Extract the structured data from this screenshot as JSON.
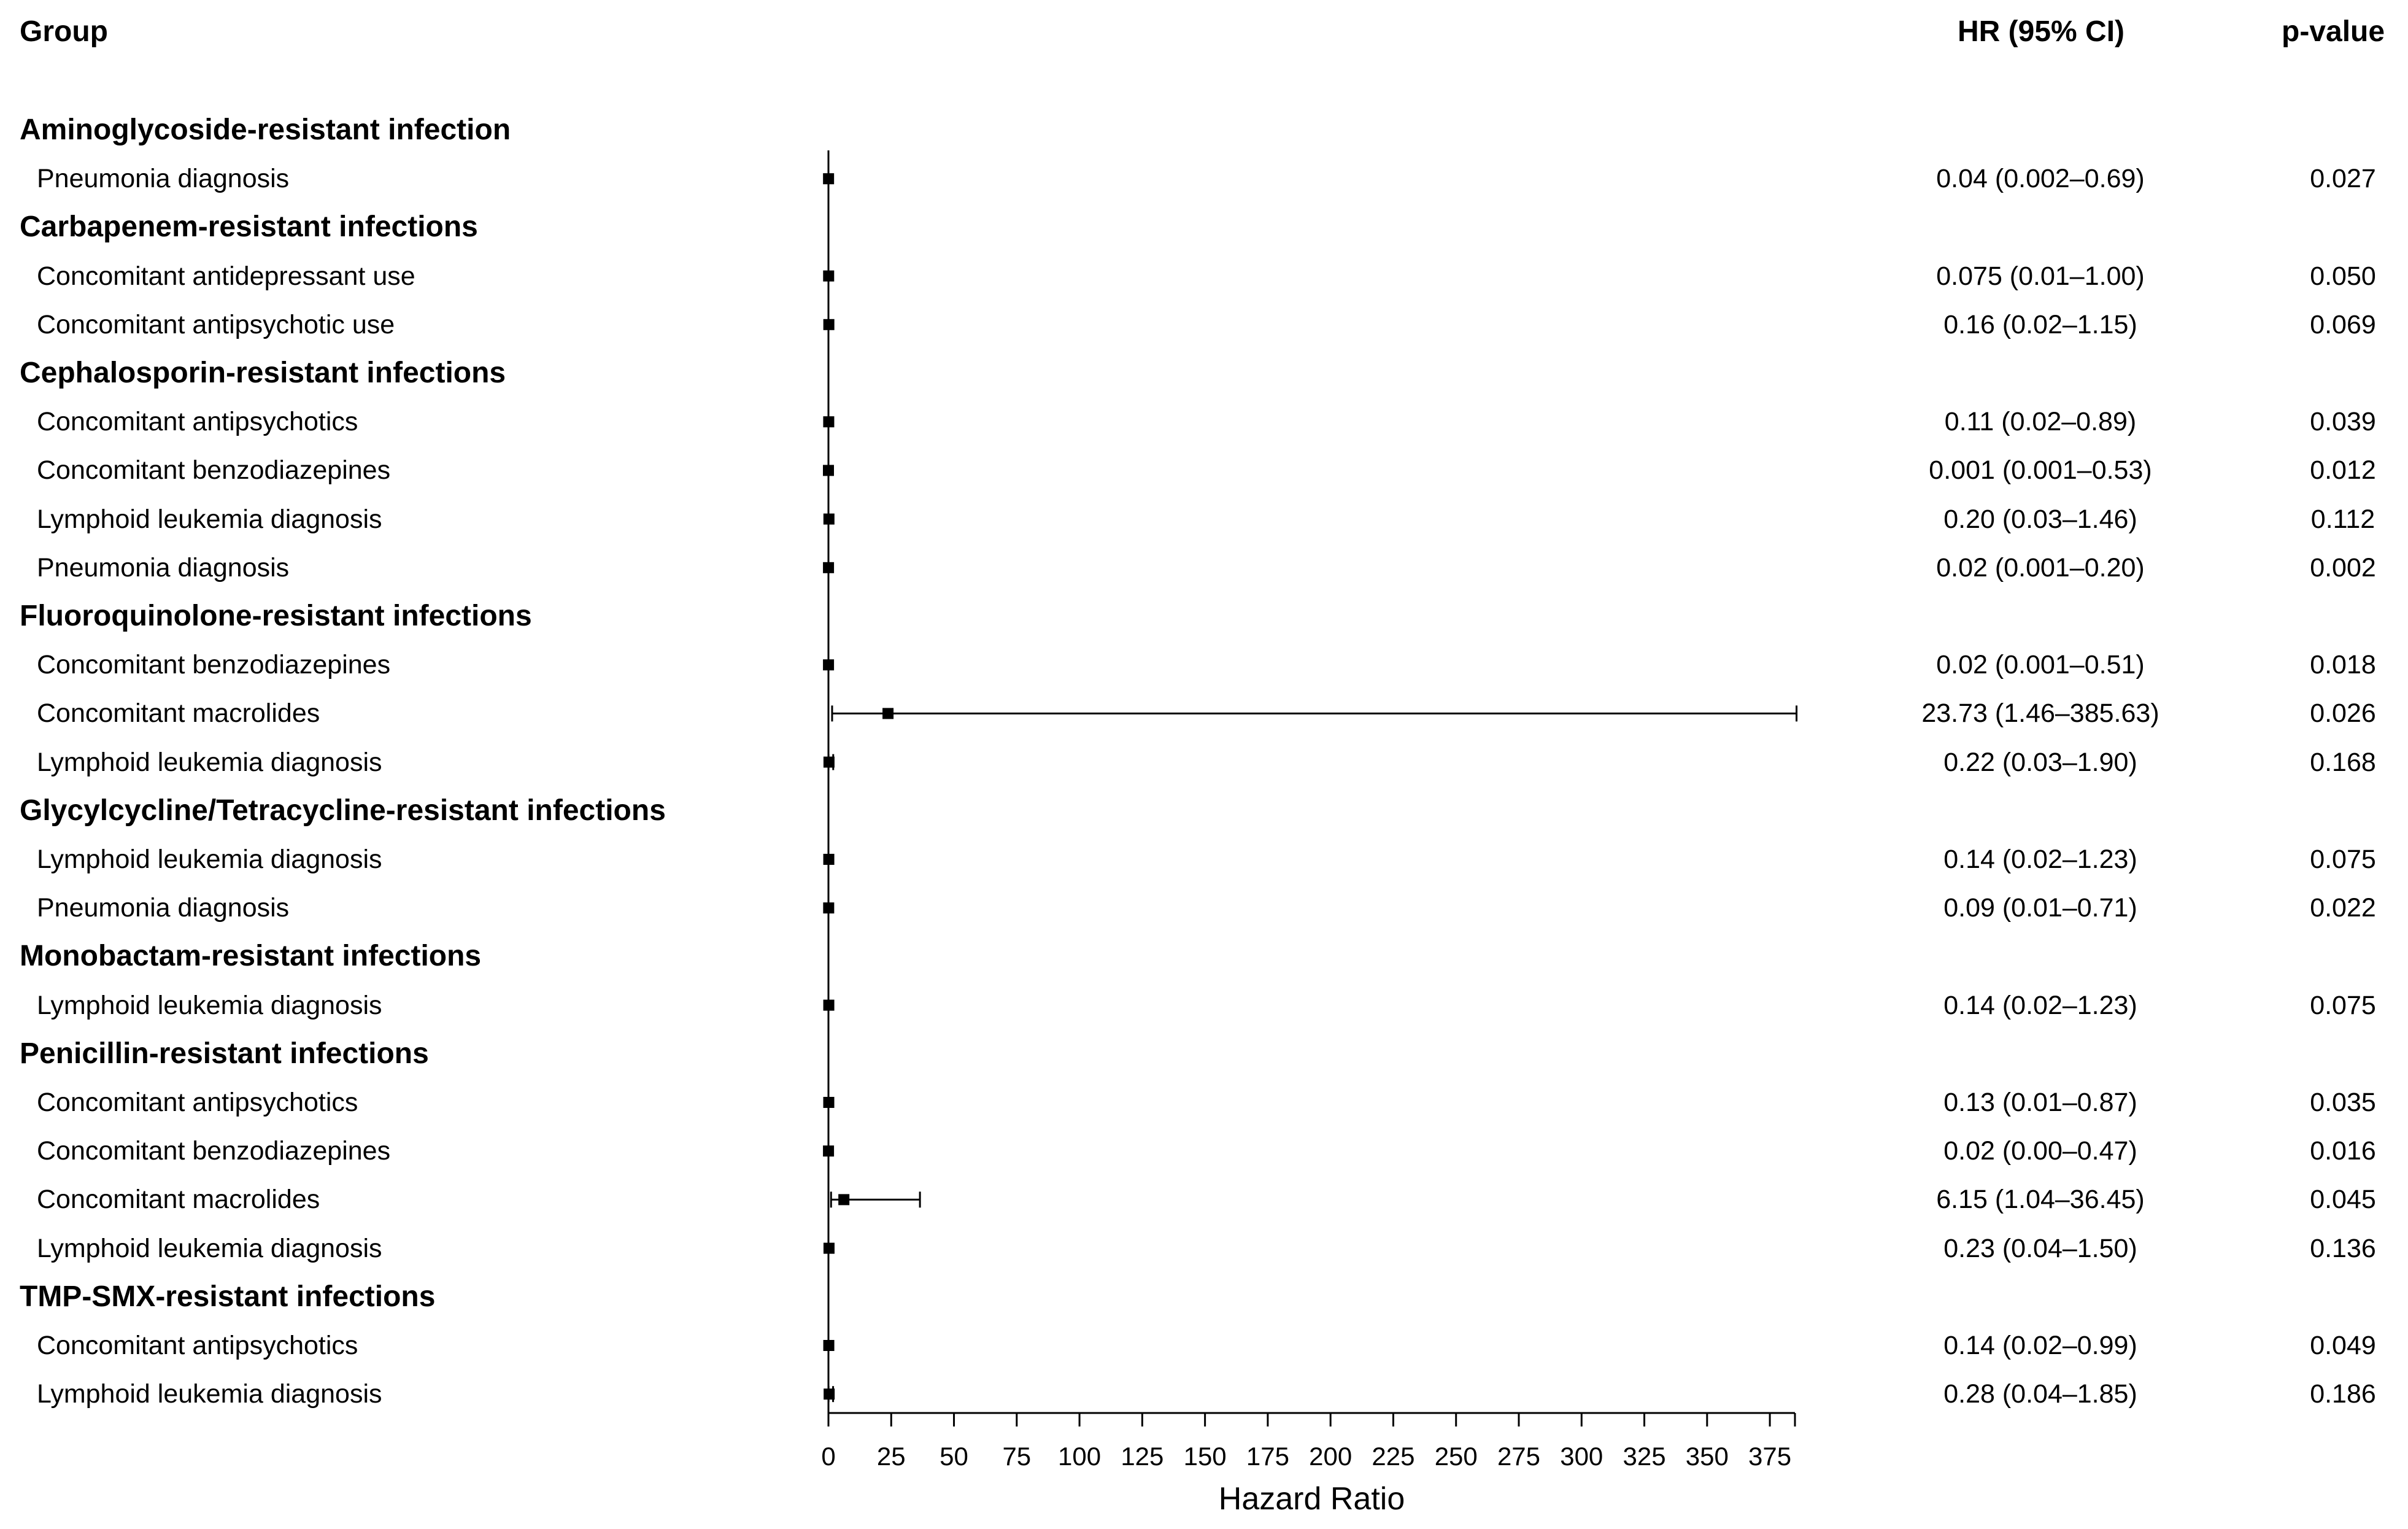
{
  "headers": {
    "group": "Group",
    "hr_ci": "HR (95% CI)",
    "p_value": "p-value"
  },
  "chart_data": {
    "type": "forest",
    "xlabel": "Hazard Ratio",
    "xlim": [
      0,
      385
    ],
    "xticks": [
      0,
      25,
      50,
      75,
      100,
      125,
      150,
      175,
      200,
      225,
      250,
      275,
      300,
      325,
      350,
      375
    ],
    "reference_line": 0,
    "rows": [
      {
        "kind": "group",
        "label": "Aminoglycoside-resistant infection"
      },
      {
        "kind": "item",
        "label": "Pneumonia diagnosis",
        "hr": 0.04,
        "lo": 0.002,
        "hi": 0.69,
        "hr_text": "0.04 (0.002–0.69)",
        "p": "0.027"
      },
      {
        "kind": "group",
        "label": "Carbapenem-resistant infections"
      },
      {
        "kind": "item",
        "label": "Concomitant antidepressant use",
        "hr": 0.075,
        "lo": 0.01,
        "hi": 1.0,
        "hr_text": "0.075 (0.01–1.00)",
        "p": "0.050"
      },
      {
        "kind": "item",
        "label": "Concomitant antipsychotic use",
        "hr": 0.16,
        "lo": 0.02,
        "hi": 1.15,
        "hr_text": "0.16 (0.02–1.15)",
        "p": "0.069"
      },
      {
        "kind": "group",
        "label": "Cephalosporin-resistant infections"
      },
      {
        "kind": "item",
        "label": "Concomitant antipsychotics",
        "hr": 0.11,
        "lo": 0.02,
        "hi": 0.89,
        "hr_text": "0.11 (0.02–0.89)",
        "p": "0.039"
      },
      {
        "kind": "item",
        "label": "Concomitant benzodiazepines",
        "hr": 0.001,
        "lo": 0.001,
        "hi": 0.53,
        "hr_text": "0.001 (0.001–0.53)",
        "p": "0.012"
      },
      {
        "kind": "item",
        "label": "Lymphoid leukemia diagnosis",
        "hr": 0.2,
        "lo": 0.03,
        "hi": 1.46,
        "hr_text": "0.20 (0.03–1.46)",
        "p": "0.112"
      },
      {
        "kind": "item",
        "label": "Pneumonia diagnosis",
        "hr": 0.02,
        "lo": 0.001,
        "hi": 0.2,
        "hr_text": "0.02 (0.001–0.20)",
        "p": "0.002"
      },
      {
        "kind": "group",
        "label": "Fluoroquinolone-resistant infections"
      },
      {
        "kind": "item",
        "label": "Concomitant benzodiazepines",
        "hr": 0.02,
        "lo": 0.001,
        "hi": 0.51,
        "hr_text": "0.02 (0.001–0.51)",
        "p": "0.018"
      },
      {
        "kind": "item",
        "label": "Concomitant macrolides",
        "hr": 23.73,
        "lo": 1.46,
        "hi": 385.63,
        "hr_text": "23.73 (1.46–385.63)",
        "p": "0.026"
      },
      {
        "kind": "item",
        "label": "Lymphoid leukemia diagnosis",
        "hr": 0.22,
        "lo": 0.03,
        "hi": 1.9,
        "hr_text": "0.22 (0.03–1.90)",
        "p": "0.168"
      },
      {
        "kind": "group",
        "label": "Glycylcycline/Tetracycline-resistant infections"
      },
      {
        "kind": "item",
        "label": "Lymphoid leukemia diagnosis",
        "hr": 0.14,
        "lo": 0.02,
        "hi": 1.23,
        "hr_text": "0.14 (0.02–1.23)",
        "p": "0.075"
      },
      {
        "kind": "item",
        "label": "Pneumonia diagnosis",
        "hr": 0.09,
        "lo": 0.01,
        "hi": 0.71,
        "hr_text": "0.09 (0.01–0.71)",
        "p": "0.022"
      },
      {
        "kind": "group",
        "label": "Monobactam-resistant infections"
      },
      {
        "kind": "item",
        "label": "Lymphoid leukemia diagnosis",
        "hr": 0.14,
        "lo": 0.02,
        "hi": 1.23,
        "hr_text": "0.14 (0.02–1.23)",
        "p": "0.075"
      },
      {
        "kind": "group",
        "label": "Penicillin-resistant infections"
      },
      {
        "kind": "item",
        "label": "Concomitant antipsychotics",
        "hr": 0.13,
        "lo": 0.01,
        "hi": 0.87,
        "hr_text": "0.13 (0.01–0.87)",
        "p": "0.035"
      },
      {
        "kind": "item",
        "label": "Concomitant benzodiazepines",
        "hr": 0.02,
        "lo": 0.0,
        "hi": 0.47,
        "hr_text": "0.02 (0.00–0.47)",
        "p": "0.016"
      },
      {
        "kind": "item",
        "label": "Concomitant macrolides",
        "hr": 6.15,
        "lo": 1.04,
        "hi": 36.45,
        "hr_text": "6.15 (1.04–36.45)",
        "p": "0.045"
      },
      {
        "kind": "item",
        "label": "Lymphoid leukemia diagnosis",
        "hr": 0.23,
        "lo": 0.04,
        "hi": 1.5,
        "hr_text": "0.23 (0.04–1.50)",
        "p": "0.136"
      },
      {
        "kind": "group",
        "label": "TMP-SMX-resistant infections"
      },
      {
        "kind": "item",
        "label": "Concomitant antipsychotics",
        "hr": 0.14,
        "lo": 0.02,
        "hi": 0.99,
        "hr_text": "0.14 (0.02–0.99)",
        "p": "0.049"
      },
      {
        "kind": "item",
        "label": "Lymphoid leukemia diagnosis",
        "hr": 0.28,
        "lo": 0.04,
        "hi": 1.85,
        "hr_text": "0.28 (0.04–1.85)",
        "p": "0.186"
      }
    ]
  }
}
